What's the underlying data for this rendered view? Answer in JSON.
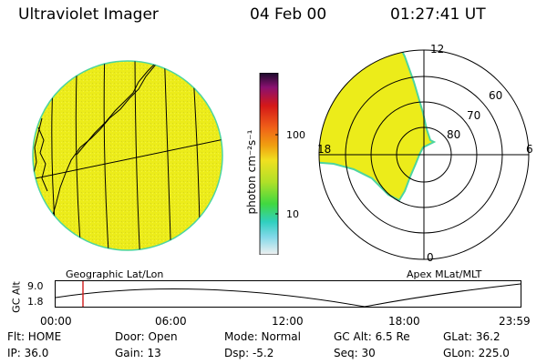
{
  "header": {
    "title": "Ultraviolet Imager",
    "date": "04 Feb 00",
    "time": "01:27:41 UT"
  },
  "colorbar": {
    "unit_label": "photon cm⁻²s⁻¹",
    "ticks": [
      "100",
      "10"
    ]
  },
  "left_panel": {
    "caption": "Geographic Lat/Lon"
  },
  "right_panel": {
    "caption": "Apex MLat/MLT",
    "mlt_labels": [
      "12",
      "18",
      "6",
      "0"
    ],
    "lat_labels": [
      "60",
      "70",
      "80"
    ]
  },
  "altitude_plot": {
    "ylabel": "GC Alt",
    "yticks": [
      "9.0",
      "1.8"
    ],
    "xticks": [
      "00:00",
      "06:00",
      "12:00",
      "18:00",
      "23:59"
    ]
  },
  "status": {
    "flt": "Flt: HOME",
    "door": "Door: Open",
    "mode": "Mode: Normal",
    "gc_alt": "GC Alt: 6.5 Re",
    "glat": "GLat: 36.2",
    "ip": "IP: 36.0",
    "gain": "Gain: 13",
    "dsp": "Dsp: -5.2",
    "seq": "Seq: 30",
    "glon": "GLon: 225.0"
  },
  "colors": {
    "image_fill": "#ecec1a",
    "edge": "#4cd5a0",
    "marker": "#d01818"
  }
}
